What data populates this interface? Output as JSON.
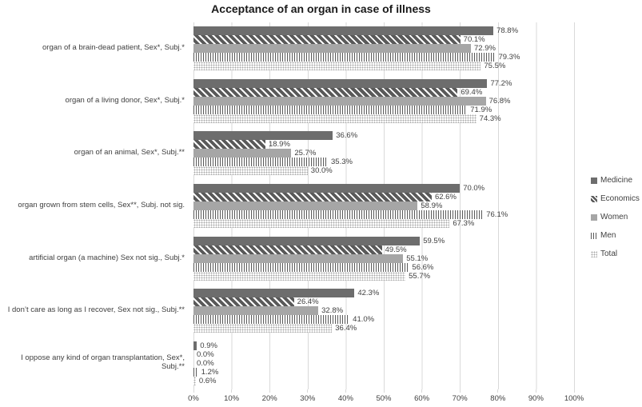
{
  "chart_data": {
    "type": "bar",
    "orientation": "horizontal",
    "title": "Acceptance of an organ in case of illness",
    "categories": [
      "organ of a brain-dead patient, Sex*, Subj.*",
      "organ of a living donor, Sex*, Subj.*",
      "organ of an animal, Sex*, Subj.**",
      "organ grown from stem cells, Sex**, Subj. not sig.",
      "artificial organ (a machine) Sex not sig., Subj.*",
      "I don’t care as long as I recover, Sex not sig., Subj.**",
      "I oppose any kind of organ transplantation, Sex*, Subj.**"
    ],
    "series": [
      {
        "name": "Medicine",
        "pattern": "solid-dark",
        "values": [
          78.8,
          77.2,
          36.6,
          70.0,
          59.5,
          42.3,
          0.9
        ]
      },
      {
        "name": "Economics",
        "pattern": "diagonal-stripes",
        "values": [
          70.1,
          69.4,
          18.9,
          62.6,
          49.5,
          26.4,
          0.0
        ]
      },
      {
        "name": "Women",
        "pattern": "solid-medium",
        "values": [
          72.9,
          76.8,
          25.7,
          58.9,
          55.1,
          32.8,
          0.0
        ]
      },
      {
        "name": "Men",
        "pattern": "vertical-stripes",
        "values": [
          79.3,
          71.9,
          35.3,
          76.1,
          56.6,
          41.0,
          1.2
        ]
      },
      {
        "name": "Total",
        "pattern": "dotted",
        "values": [
          75.5,
          74.3,
          30.0,
          67.3,
          55.7,
          36.4,
          0.6
        ]
      }
    ],
    "xlim": [
      0,
      100
    ],
    "x_ticks": [
      "0%",
      "10%",
      "20%",
      "30%",
      "40%",
      "50%",
      "60%",
      "70%",
      "80%",
      "90%",
      "100%"
    ],
    "grid": true,
    "legend_position": "right",
    "value_labels": true,
    "value_label_format": "0.0%"
  },
  "colors": {
    "series_dark": "#6d6d6d",
    "series_medium": "#a6a6a6",
    "pattern_stroke": "#595959",
    "dot_fill": "#a8a8a8",
    "gridline": "#d9d9d9",
    "text": "#404040",
    "title": "#1a1a1a",
    "background": "#ffffff"
  }
}
